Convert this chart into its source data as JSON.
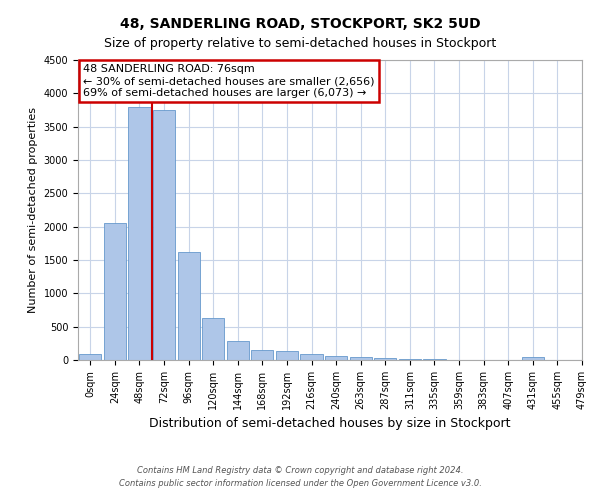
{
  "title": "48, SANDERLING ROAD, STOCKPORT, SK2 5UD",
  "subtitle": "Size of property relative to semi-detached houses in Stockport",
  "xlabel": "Distribution of semi-detached houses by size in Stockport",
  "ylabel": "Number of semi-detached properties",
  "bin_labels": [
    "0sqm",
    "24sqm",
    "48sqm",
    "72sqm",
    "96sqm",
    "120sqm",
    "144sqm",
    "168sqm",
    "192sqm",
    "216sqm",
    "240sqm",
    "263sqm",
    "287sqm",
    "311sqm",
    "335sqm",
    "359sqm",
    "383sqm",
    "407sqm",
    "431sqm",
    "455sqm",
    "479sqm"
  ],
  "bar_values": [
    90,
    2060,
    3800,
    3750,
    1620,
    630,
    290,
    145,
    130,
    95,
    60,
    45,
    30,
    15,
    10,
    5,
    0,
    0,
    40,
    0,
    0
  ],
  "bar_color": "#aec6e8",
  "bar_edge_color": "#6699cc",
  "red_line_color": "#cc0000",
  "red_line_bin": 3,
  "annotation_title": "48 SANDERLING ROAD: 76sqm",
  "annotation_line1": "← 30% of semi-detached houses are smaller (2,656)",
  "annotation_line2": "69% of semi-detached houses are larger (6,073) →",
  "annotation_box_color": "#ffffff",
  "annotation_box_edge": "#cc0000",
  "ylim": [
    0,
    4500
  ],
  "yticks": [
    0,
    500,
    1000,
    1500,
    2000,
    2500,
    3000,
    3500,
    4000,
    4500
  ],
  "footer1": "Contains HM Land Registry data © Crown copyright and database right 2024.",
  "footer2": "Contains public sector information licensed under the Open Government Licence v3.0.",
  "background_color": "#ffffff",
  "grid_color": "#c8d4e8",
  "title_fontsize": 10,
  "subtitle_fontsize": 9,
  "xlabel_fontsize": 9,
  "ylabel_fontsize": 8,
  "tick_fontsize": 7,
  "footer_fontsize": 6,
  "annotation_fontsize": 8
}
